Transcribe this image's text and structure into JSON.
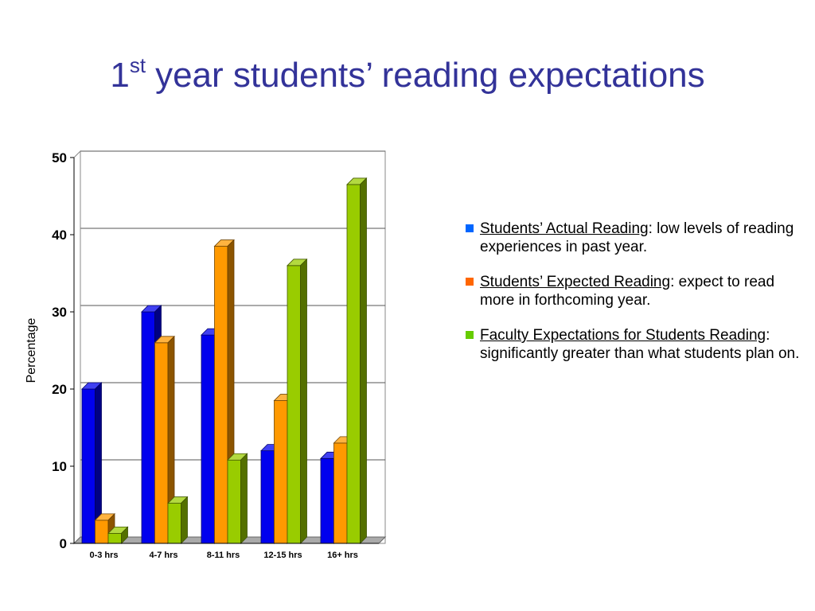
{
  "slide": {
    "title_number": "1",
    "title_superscript": "st",
    "title_rest": "year students’ reading expectations"
  },
  "bullets": [
    {
      "term": "Students’ Actual Reading",
      "rest": ": low levels of reading experiences in past year.",
      "color": "#0066ff"
    },
    {
      "term": "Students’ Expected Reading",
      "rest": ": expect to read more in forthcoming year.",
      "color": "#ff6600"
    },
    {
      "term": "Faculty Expectations for Students Reading",
      "rest": ":  significantly greater than what students plan on.",
      "color": "#66cc00"
    }
  ],
  "chart_data": {
    "type": "bar",
    "ylabel": "Percentage",
    "xlabel": "",
    "ylim": [
      0,
      50
    ],
    "yticks": [
      0,
      10,
      20,
      30,
      40,
      50
    ],
    "categories": [
      "0-3 hrs",
      "4-7 hrs",
      "8-11 hrs",
      "12-15 hrs",
      "16+ hrs"
    ],
    "series": [
      {
        "values": [
          20,
          30,
          27,
          12,
          11
        ],
        "color": "#0000ee"
      },
      {
        "values": [
          3,
          26,
          38.5,
          18.5,
          13
        ],
        "color": "#ff9900"
      },
      {
        "values": [
          1.3,
          5.2,
          10.8,
          36,
          46.5
        ],
        "color": "#99cc00"
      }
    ],
    "grid": true,
    "style": "3d-columns"
  }
}
